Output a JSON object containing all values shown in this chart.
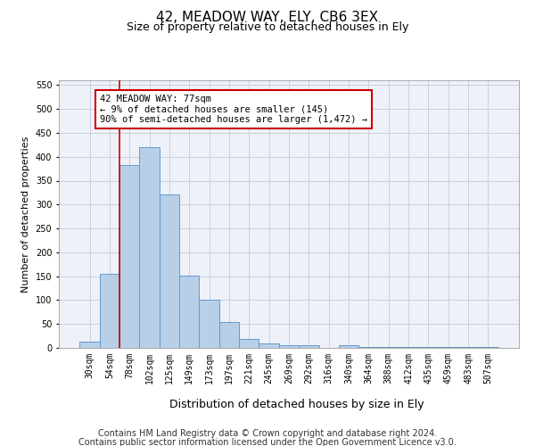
{
  "title": "42, MEADOW WAY, ELY, CB6 3EX",
  "subtitle": "Size of property relative to detached houses in Ely",
  "xlabel": "Distribution of detached houses by size in Ely",
  "ylabel": "Number of detached properties",
  "categories": [
    "30sqm",
    "54sqm",
    "78sqm",
    "102sqm",
    "125sqm",
    "149sqm",
    "173sqm",
    "197sqm",
    "221sqm",
    "245sqm",
    "269sqm",
    "292sqm",
    "316sqm",
    "340sqm",
    "364sqm",
    "388sqm",
    "412sqm",
    "435sqm",
    "459sqm",
    "483sqm",
    "507sqm"
  ],
  "values": [
    13,
    155,
    383,
    420,
    322,
    152,
    100,
    55,
    19,
    10,
    5,
    5,
    0,
    5,
    2,
    2,
    1,
    2,
    1,
    2,
    2
  ],
  "bar_color": "#b8cfe8",
  "bar_edge_color": "#6699cc",
  "highlight_line_color": "#cc0000",
  "annotation_text": "42 MEADOW WAY: 77sqm\n← 9% of detached houses are smaller (145)\n90% of semi-detached houses are larger (1,472) →",
  "annotation_box_color": "#cc0000",
  "ylim": [
    0,
    560
  ],
  "yticks": [
    0,
    50,
    100,
    150,
    200,
    250,
    300,
    350,
    400,
    450,
    500,
    550
  ],
  "footer_line1": "Contains HM Land Registry data © Crown copyright and database right 2024.",
  "footer_line2": "Contains public sector information licensed under the Open Government Licence v3.0.",
  "background_color": "#eef1f8",
  "grid_color": "#c5cad8",
  "title_fontsize": 11,
  "subtitle_fontsize": 9,
  "axis_label_fontsize": 8,
  "tick_fontsize": 7,
  "footer_fontsize": 7
}
